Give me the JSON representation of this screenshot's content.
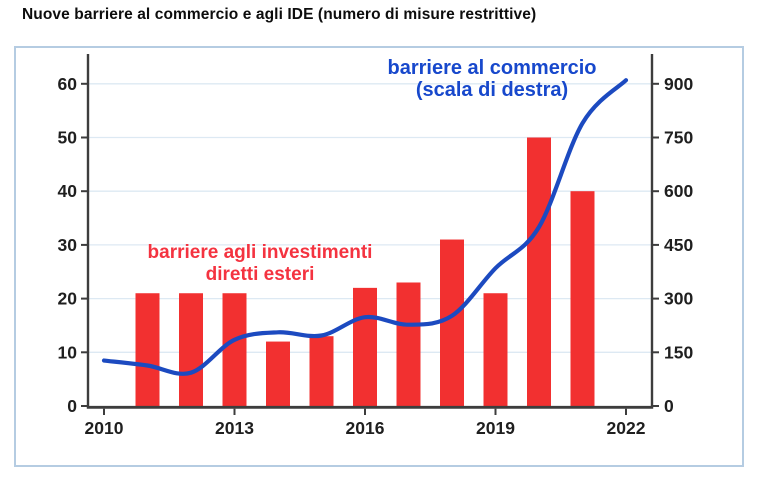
{
  "title": "Nuove barriere al commercio e agli IDE (numero di misure restrittive)",
  "colors": {
    "bar": "#f23030",
    "line": "#1c4ac0",
    "annotation_red": "#f43340",
    "annotation_blue": "#1748cc",
    "axis": "#3d3d3d",
    "grid": "#dde9f3",
    "frame_border": "#b5cce2",
    "tick_label": "#1f1f1f"
  },
  "chart_data": {
    "type": "bar",
    "title": "Nuove barriere al commercio e agli IDE (numero di misure restrittive)",
    "grid": true,
    "legend_position": "none",
    "x_axis": {
      "ticks": [
        2010,
        2013,
        2016,
        2019,
        2022
      ],
      "range": [
        2009.3,
        2022.7
      ]
    },
    "left_axis": {
      "ticks": [
        0,
        10,
        20,
        30,
        40,
        50,
        60
      ],
      "range": [
        0,
        65.5
      ]
    },
    "right_axis": {
      "ticks": [
        0,
        150,
        300,
        450,
        600,
        750,
        900
      ],
      "range": [
        0,
        982
      ]
    },
    "series": [
      {
        "name": "barriere agli investimenti diretti esteri",
        "type": "bar",
        "axis": "left",
        "color": "#f23030",
        "years": [
          2011,
          2012,
          2013,
          2014,
          2015,
          2016,
          2017,
          2018,
          2019,
          2020,
          2021
        ],
        "values": [
          21,
          21,
          21,
          12,
          13,
          22,
          23,
          31,
          21,
          50,
          40
        ]
      },
      {
        "name": "barriere al commercio (scala di destra)",
        "type": "line",
        "axis": "right",
        "color": "#1c4ac0",
        "years": [
          2010,
          2011,
          2012,
          2013,
          2014,
          2015,
          2016,
          2017,
          2018,
          2019,
          2020,
          2021,
          2022
        ],
        "values": [
          127,
          113,
          93,
          185,
          206,
          197,
          248,
          227,
          252,
          385,
          500,
          790,
          910
        ]
      }
    ],
    "annotations": {
      "trade": {
        "line1": "barriere al commercio",
        "line2": "(scala di destra)"
      },
      "fdi": {
        "line1": "barriere agli investimenti",
        "line2": "diretti esteri"
      }
    }
  }
}
